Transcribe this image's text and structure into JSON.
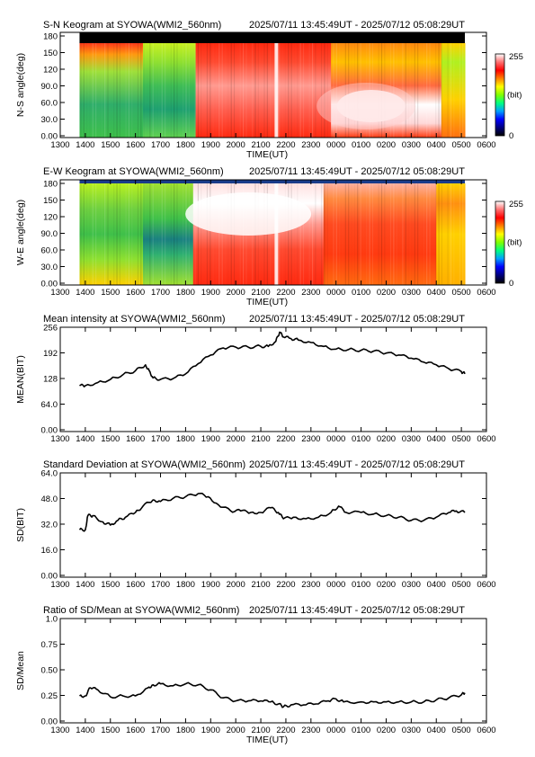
{
  "chart_data": [
    {
      "type": "heatmap",
      "title": "S-N Keogram at SYOWA(WMI2_560nm)",
      "time_range": "2025/07/11 13:45:49UT - 2025/07/12 05:08:29UT",
      "xlabel": "TIME(UT)",
      "ylabel": "N-S angle(deg)",
      "x_ticks": [
        "1300",
        "1400",
        "1500",
        "1600",
        "1700",
        "1800",
        "1900",
        "2000",
        "2100",
        "2200",
        "2300",
        "0000",
        "0100",
        "0200",
        "0300",
        "0400",
        "0500",
        "0600"
      ],
      "y_ticks": [
        "0.00",
        "30.0",
        "60.0",
        "90.0",
        "120",
        "150",
        "180"
      ],
      "ylim": [
        0,
        180
      ],
      "colorbar": {
        "min": "0",
        "max": "255",
        "unit": "(bit)"
      },
      "colormap": [
        "#000000",
        "#00007f",
        "#0000ff",
        "#00a0ff",
        "#00ff80",
        "#80ff00",
        "#ffff00",
        "#ff8000",
        "#ff0000",
        "#ff7070",
        "#ffffff"
      ]
    },
    {
      "type": "heatmap",
      "title": "E-W Keogram at SYOWA(WMI2_560nm)",
      "time_range": "2025/07/11 13:45:49UT - 2025/07/12 05:08:29UT",
      "xlabel": "TIME(UT)",
      "ylabel": "W-E angle(deg)",
      "x_ticks": [
        "1300",
        "1400",
        "1500",
        "1600",
        "1700",
        "1800",
        "1900",
        "2000",
        "2100",
        "2200",
        "2300",
        "0000",
        "0100",
        "0200",
        "0300",
        "0400",
        "0500",
        "0600"
      ],
      "y_ticks": [
        "0.00",
        "30.0",
        "60.0",
        "90.0",
        "120",
        "150",
        "180"
      ],
      "ylim": [
        0,
        180
      ],
      "colorbar": {
        "min": "0",
        "max": "255",
        "unit": "(bit)"
      }
    },
    {
      "type": "line",
      "title": "Mean intensity at SYOWA(WMI2_560nm)",
      "time_range": "2025/07/11 13:45:49UT - 2025/07/12 05:08:29UT",
      "xlabel": "TIME(UT)",
      "ylabel": "MEAN(BIT)",
      "x_ticks": [
        "1300",
        "1400",
        "1500",
        "1600",
        "1700",
        "1800",
        "1900",
        "2000",
        "2100",
        "2200",
        "2300",
        "0000",
        "0100",
        "0200",
        "0300",
        "0400",
        "0500",
        "0600"
      ],
      "y_ticks": [
        "0.00",
        "64.0",
        "128",
        "192",
        "256"
      ],
      "ylim": [
        0,
        256
      ],
      "x": [
        13.77,
        14.0,
        14.5,
        15.0,
        15.5,
        16.0,
        16.4,
        16.55,
        16.7,
        17.0,
        17.5,
        18.0,
        18.5,
        19.0,
        19.5,
        20.0,
        20.5,
        21.0,
        21.3,
        21.6,
        21.75,
        21.9,
        22.2,
        22.5,
        23.0,
        23.5,
        24.0,
        24.5,
        25.0,
        25.5,
        26.0,
        26.5,
        27.0,
        27.5,
        28.0,
        28.5,
        29.0,
        29.14
      ],
      "series": [
        {
          "values": [
            112,
            112,
            120,
            128,
            140,
            150,
            165,
            150,
            132,
            128,
            130,
            142,
            168,
            190,
            208,
            210,
            210,
            212,
            212,
            225,
            248,
            236,
            232,
            228,
            222,
            212,
            205,
            204,
            202,
            200,
            195,
            190,
            182,
            172,
            165,
            155,
            148,
            142
          ]
        }
      ]
    },
    {
      "type": "line",
      "title": "Standard Deviation at SYOWA(WMI2_560nm)",
      "time_range": "2025/07/11 13:45:49UT - 2025/07/12 05:08:29UT",
      "xlabel": "TIME(UT)",
      "ylabel": "SD(BIT)",
      "x_ticks": [
        "1300",
        "1400",
        "1500",
        "1600",
        "1700",
        "1800",
        "1900",
        "2000",
        "2100",
        "2200",
        "2300",
        "0000",
        "0100",
        "0200",
        "0300",
        "0400",
        "0500",
        "0600"
      ],
      "y_ticks": [
        "0.00",
        "16.0",
        "32.0",
        "48.0",
        "64.0"
      ],
      "ylim": [
        0,
        64
      ],
      "x": [
        13.77,
        14.0,
        14.1,
        14.3,
        14.7,
        15.0,
        15.3,
        15.6,
        16.0,
        16.3,
        16.7,
        17.0,
        17.5,
        18.0,
        18.5,
        18.9,
        19.3,
        19.8,
        20.2,
        20.6,
        21.0,
        21.4,
        21.7,
        21.9,
        22.3,
        22.8,
        23.3,
        23.8,
        24.1,
        24.4,
        25.0,
        25.5,
        26.0,
        26.5,
        27.0,
        27.5,
        28.0,
        28.5,
        28.8,
        29.14
      ],
      "series": [
        {
          "values": [
            29,
            29,
            38,
            38,
            34,
            32,
            35,
            37,
            40,
            44,
            48,
            47,
            49,
            50,
            52,
            50,
            45,
            41,
            41,
            40,
            40,
            43,
            40,
            36,
            37,
            36,
            37,
            40,
            44,
            40,
            40,
            39,
            38,
            37,
            35,
            35,
            37,
            40,
            41,
            40
          ]
        }
      ]
    },
    {
      "type": "line",
      "title": "Ratio of SD/Mean at SYOWA(WMI2_560nm)",
      "time_range": "2025/07/11 13:45:49UT - 2025/07/12 05:08:29UT",
      "xlabel": "TIME(UT)",
      "ylabel": "SD/Mean",
      "x_ticks": [
        "1300",
        "1400",
        "1500",
        "1600",
        "1700",
        "1800",
        "1900",
        "2000",
        "2100",
        "2200",
        "2300",
        "0000",
        "0100",
        "0200",
        "0300",
        "0400",
        "0500",
        "0600"
      ],
      "y_ticks": [
        "0.00",
        "0.25",
        "0.50",
        "0.75",
        "1.0"
      ],
      "ylim": [
        0,
        1
      ],
      "x": [
        13.77,
        14.0,
        14.2,
        14.5,
        15.0,
        15.5,
        16.0,
        16.5,
        16.7,
        17.0,
        17.5,
        18.0,
        18.5,
        19.0,
        19.5,
        20.0,
        20.5,
        21.0,
        21.4,
        21.7,
        21.9,
        22.2,
        22.7,
        23.2,
        23.7,
        24.0,
        24.3,
        25.0,
        25.5,
        26.0,
        26.5,
        27.0,
        27.5,
        28.0,
        28.5,
        29.0,
        29.14
      ],
      "series": [
        {
          "values": [
            0.25,
            0.25,
            0.33,
            0.31,
            0.24,
            0.25,
            0.25,
            0.33,
            0.36,
            0.37,
            0.35,
            0.37,
            0.36,
            0.31,
            0.23,
            0.2,
            0.2,
            0.2,
            0.19,
            0.17,
            0.14,
            0.16,
            0.16,
            0.17,
            0.2,
            0.22,
            0.19,
            0.19,
            0.19,
            0.19,
            0.19,
            0.19,
            0.19,
            0.21,
            0.23,
            0.26,
            0.28
          ]
        }
      ]
    }
  ]
}
